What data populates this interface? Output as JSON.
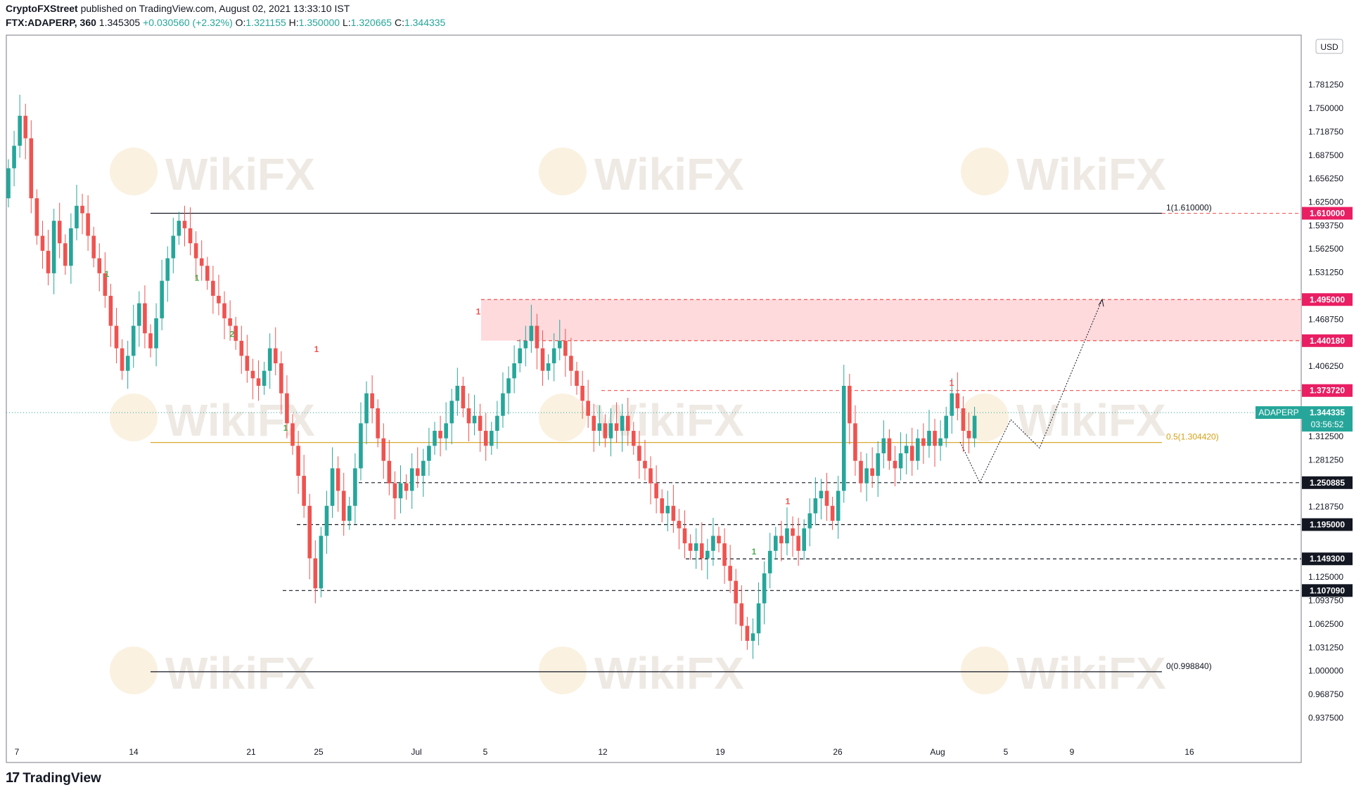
{
  "header": {
    "author": "CryptoFXStreet",
    "published_text": "published on TradingView.com, August 02, 2021 13:33:10 IST",
    "symbol": "FTX:ADAPERP, 360",
    "last": "1.345305",
    "change": "+0.030560 (+2.32%)",
    "o_label": "O:",
    "o_val": "1.321155",
    "h_label": "H:",
    "h_val": "1.350000",
    "l_label": "L:",
    "l_val": "1.320665",
    "c_label": "C:",
    "c_val": "1.344335"
  },
  "footer": {
    "brand": "TradingView"
  },
  "watermark": "WikiFX",
  "colors": {
    "up": "#26a69a",
    "down": "#ef5350",
    "zone": "#ffcdd2",
    "fib": "#d4a017",
    "badge_red": "#e91e63",
    "badge_dark": "#131722"
  },
  "chart_data": {
    "type": "candlestick",
    "currency": "USD",
    "ylim": [
      0.92,
      1.84
    ],
    "y_ticks": [
      "0.937500",
      "0.968750",
      "1.000000",
      "1.031250",
      "1.062500",
      "1.093750",
      "1.125000",
      "1.218750",
      "1.281250",
      "1.312500",
      "1.406250",
      "1.468750",
      "1.531250",
      "1.562500",
      "1.593750",
      "1.625000",
      "1.656250",
      "1.687500",
      "1.718750",
      "1.750000",
      "1.781250"
    ],
    "x_ticks": [
      "7",
      "14",
      "21",
      "25",
      "Jul",
      "5",
      "12",
      "19",
      "26",
      "Aug",
      "5",
      "9",
      "16"
    ],
    "price_lines": [
      {
        "label": "1(1.610000)",
        "value": 1.61,
        "badge": "1.610000",
        "style": "fib",
        "badge_color": "red"
      },
      {
        "label": "0(0.998840)",
        "value": 0.99884,
        "badge": "",
        "style": "fib",
        "badge_color": ""
      },
      {
        "label": "0.5(1.304420)",
        "value": 1.30442,
        "badge": "",
        "style": "fib-mid",
        "badge_color": ""
      },
      {
        "label": "",
        "value": 1.495,
        "badge": "1.495000",
        "style": "dashed-red",
        "badge_color": "red"
      },
      {
        "label": "",
        "value": 1.44018,
        "badge": "1.440180",
        "style": "dashed-red",
        "badge_color": "red"
      },
      {
        "label": "",
        "value": 1.37372,
        "badge": "1.373720",
        "style": "dashed-red",
        "badge_color": "red"
      },
      {
        "label": "",
        "value": 1.250885,
        "badge": "1.250885",
        "style": "dashed-black",
        "badge_color": "dark"
      },
      {
        "label": "",
        "value": 1.195,
        "badge": "1.195000",
        "style": "dashed-black",
        "badge_color": "dark"
      },
      {
        "label": "",
        "value": 1.1493,
        "badge": "1.149300",
        "style": "dashed-black",
        "badge_color": "dark"
      },
      {
        "label": "",
        "value": 1.10709,
        "badge": "1.107090",
        "style": "dashed-black",
        "badge_color": "dark"
      }
    ],
    "supply_zone": {
      "low": 1.44018,
      "high": 1.495
    },
    "current": {
      "symbol": "ADAPERP",
      "price": "1.344335",
      "countdown": "03:56:52",
      "value": 1.344335
    },
    "projection": [
      {
        "x": "Aug 2",
        "y": 1.305
      },
      {
        "x": "Aug 3",
        "y": 1.251
      },
      {
        "x": "Aug 5",
        "y": 1.335
      },
      {
        "x": "Aug 7",
        "y": 1.297
      },
      {
        "x": "Aug 12",
        "y": 1.495
      }
    ],
    "sequence_marks": [
      {
        "x": "Jun 12",
        "text": "1",
        "color": "green"
      },
      {
        "x": "Jun 17",
        "text": "1",
        "color": "green"
      },
      {
        "x": "Jun 20",
        "text": "2",
        "color": "green"
      },
      {
        "x": "Jun 23",
        "text": "1",
        "color": "green"
      },
      {
        "x": "Jun 24",
        "text": "1",
        "color": "red"
      },
      {
        "x": "Jul 4",
        "text": "1",
        "color": "red"
      },
      {
        "x": "Jul 20",
        "text": "1",
        "color": "green"
      },
      {
        "x": "Jul 22",
        "text": "1",
        "color": "red"
      },
      {
        "x": "Aug 1",
        "text": "1",
        "color": "red"
      }
    ],
    "closes": [
      1.67,
      1.7,
      1.74,
      1.71,
      1.63,
      1.58,
      1.56,
      1.53,
      1.6,
      1.57,
      1.54,
      1.59,
      1.62,
      1.61,
      1.58,
      1.55,
      1.53,
      1.5,
      1.46,
      1.43,
      1.4,
      1.42,
      1.46,
      1.49,
      1.45,
      1.43,
      1.47,
      1.52,
      1.55,
      1.58,
      1.6,
      1.59,
      1.57,
      1.55,
      1.54,
      1.52,
      1.5,
      1.49,
      1.47,
      1.46,
      1.44,
      1.42,
      1.4,
      1.39,
      1.38,
      1.4,
      1.43,
      1.41,
      1.37,
      1.33,
      1.3,
      1.26,
      1.22,
      1.15,
      1.11,
      1.18,
      1.22,
      1.27,
      1.24,
      1.2,
      1.22,
      1.27,
      1.33,
      1.37,
      1.35,
      1.31,
      1.28,
      1.25,
      1.23,
      1.25,
      1.24,
      1.27,
      1.26,
      1.28,
      1.3,
      1.32,
      1.31,
      1.33,
      1.36,
      1.38,
      1.35,
      1.33,
      1.34,
      1.32,
      1.3,
      1.32,
      1.34,
      1.37,
      1.39,
      1.41,
      1.43,
      1.44,
      1.46,
      1.43,
      1.4,
      1.41,
      1.43,
      1.44,
      1.42,
      1.4,
      1.38,
      1.36,
      1.34,
      1.32,
      1.33,
      1.31,
      1.33,
      1.32,
      1.34,
      1.32,
      1.3,
      1.28,
      1.27,
      1.25,
      1.23,
      1.21,
      1.22,
      1.2,
      1.19,
      1.17,
      1.16,
      1.17,
      1.15,
      1.16,
      1.18,
      1.17,
      1.14,
      1.12,
      1.09,
      1.06,
      1.04,
      1.05,
      1.09,
      1.13,
      1.16,
      1.18,
      1.17,
      1.19,
      1.18,
      1.16,
      1.19,
      1.21,
      1.23,
      1.24,
      1.22,
      1.2,
      1.24,
      1.38,
      1.33,
      1.28,
      1.25,
      1.27,
      1.26,
      1.29,
      1.31,
      1.28,
      1.27,
      1.29,
      1.3,
      1.28,
      1.31,
      1.3,
      1.32,
      1.3,
      1.31,
      1.34,
      1.37,
      1.35,
      1.32,
      1.31,
      1.34
    ]
  }
}
